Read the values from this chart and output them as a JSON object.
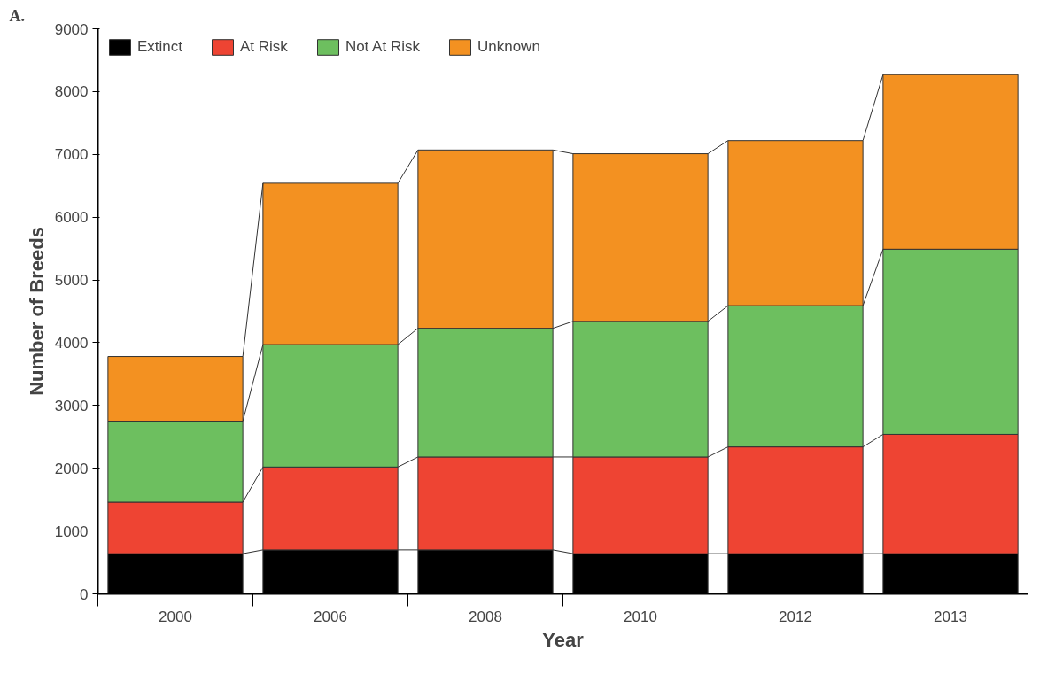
{
  "chart_data": {
    "type": "bar",
    "stacked": true,
    "xlabel": "Year",
    "ylabel": "Number of Breeds",
    "categories": [
      "2000",
      "2006",
      "2008",
      "2010",
      "2012",
      "2013"
    ],
    "series": [
      {
        "name": "Extinct",
        "color": "#000000",
        "values": [
          640,
          700,
          700,
          640,
          640,
          640
        ]
      },
      {
        "name": "At Risk",
        "color": "#ee4433",
        "values": [
          820,
          1320,
          1480,
          1540,
          1700,
          1900
        ]
      },
      {
        "name": "Not At Risk",
        "color": "#6dbf5f",
        "values": [
          1290,
          1950,
          2050,
          2160,
          2250,
          2950
        ]
      },
      {
        "name": "Unknown",
        "color": "#f39121",
        "values": [
          1030,
          2570,
          2840,
          2670,
          2630,
          2780
        ]
      }
    ],
    "ylim": [
      0,
      9000
    ],
    "yticks": [
      0,
      1000,
      2000,
      3000,
      4000,
      5000,
      6000,
      7000,
      8000,
      9000
    ],
    "grid": false,
    "legend": "top left",
    "annotations": [
      "A."
    ]
  }
}
